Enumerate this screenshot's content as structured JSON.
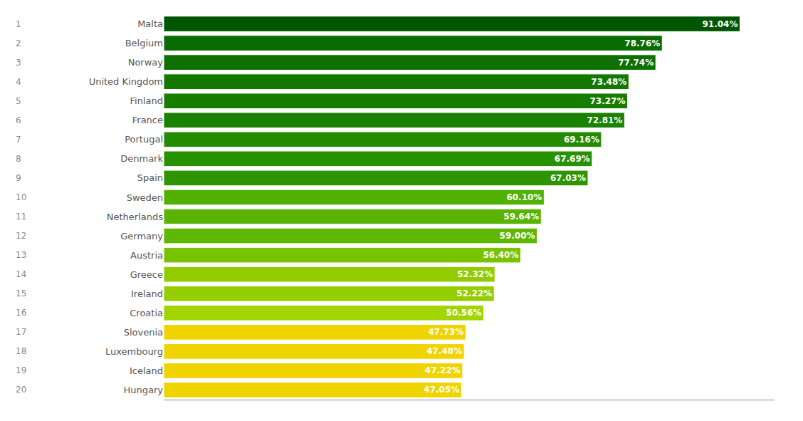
{
  "chart_data": {
    "type": "bar",
    "orientation": "horizontal",
    "categories": [
      "Malta",
      "Belgium",
      "Norway",
      "United Kingdom",
      "Finland",
      "France",
      "Portugal",
      "Denmark",
      "Spain",
      "Sweden",
      "Netherlands",
      "Germany",
      "Austria",
      "Greece",
      "Ireland",
      "Croatia",
      "Slovenia",
      "Luxembourg",
      "Iceland",
      "Hungary"
    ],
    "values": [
      91.04,
      78.76,
      77.74,
      73.48,
      73.27,
      72.81,
      69.16,
      67.69,
      67.03,
      60.1,
      59.64,
      59.0,
      56.4,
      52.32,
      52.22,
      50.56,
      47.73,
      47.48,
      47.22,
      47.05
    ],
    "value_labels": [
      "91.04%",
      "78.76%",
      "77.74%",
      "73.48%",
      "73.27%",
      "72.81%",
      "69.16%",
      "67.69%",
      "67.03%",
      "60.10%",
      "59.64%",
      "59.00%",
      "56.40%",
      "52.32%",
      "52.22%",
      "50.56%",
      "47.73%",
      "47.48%",
      "47.22%",
      "47.05%"
    ],
    "colors": [
      "#005500",
      "#0a6b00",
      "#0d7000",
      "#147800",
      "#177d00",
      "#1a8200",
      "#228b00",
      "#289100",
      "#2e9500",
      "#52b000",
      "#58b400",
      "#5eb700",
      "#78c300",
      "#92cc00",
      "#94cd00",
      "#a2d400",
      "#f0d400",
      "#f0d400",
      "#f0d400",
      "#f0d400"
    ],
    "ranks": [
      1,
      2,
      3,
      4,
      5,
      6,
      7,
      8,
      9,
      10,
      11,
      12,
      13,
      14,
      15,
      16,
      17,
      18,
      19,
      20
    ],
    "xlim": [
      0,
      96.5
    ],
    "xticks": [],
    "grid": false,
    "data_labels": true,
    "tick_labels": "y"
  }
}
